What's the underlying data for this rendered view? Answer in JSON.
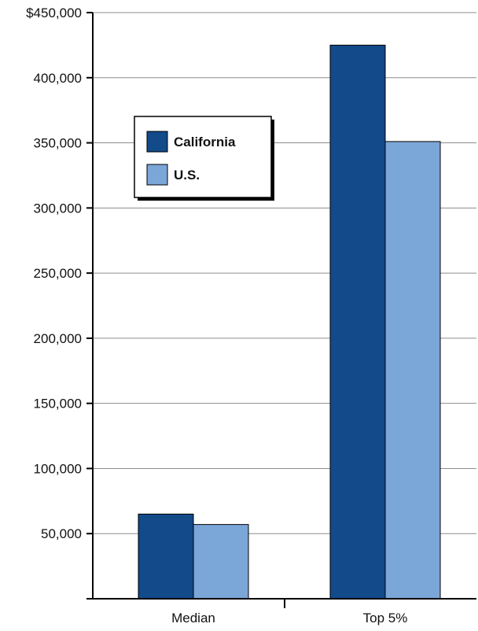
{
  "chart_data": {
    "type": "bar",
    "categories": [
      "Median",
      "Top 5%"
    ],
    "series": [
      {
        "name": "California",
        "values": [
          65000,
          425000
        ],
        "color": "#124a8a"
      },
      {
        "name": "U.S.",
        "values": [
          57000,
          351000
        ],
        "color": "#7ba6d8"
      }
    ],
    "y_ticks": [
      {
        "value": 50000,
        "label": "50,000"
      },
      {
        "value": 100000,
        "label": "100,000"
      },
      {
        "value": 150000,
        "label": "150,000"
      },
      {
        "value": 200000,
        "label": "200,000"
      },
      {
        "value": 250000,
        "label": "250,000"
      },
      {
        "value": 300000,
        "label": "300,000"
      },
      {
        "value": 350000,
        "label": "350,000"
      },
      {
        "value": 400000,
        "label": "400,000"
      },
      {
        "value": 450000,
        "label": "$450,000"
      }
    ],
    "ylim": [
      0,
      450000
    ],
    "grid": true,
    "legend_position": "top-left",
    "title": "",
    "xlabel": "",
    "ylabel": ""
  }
}
